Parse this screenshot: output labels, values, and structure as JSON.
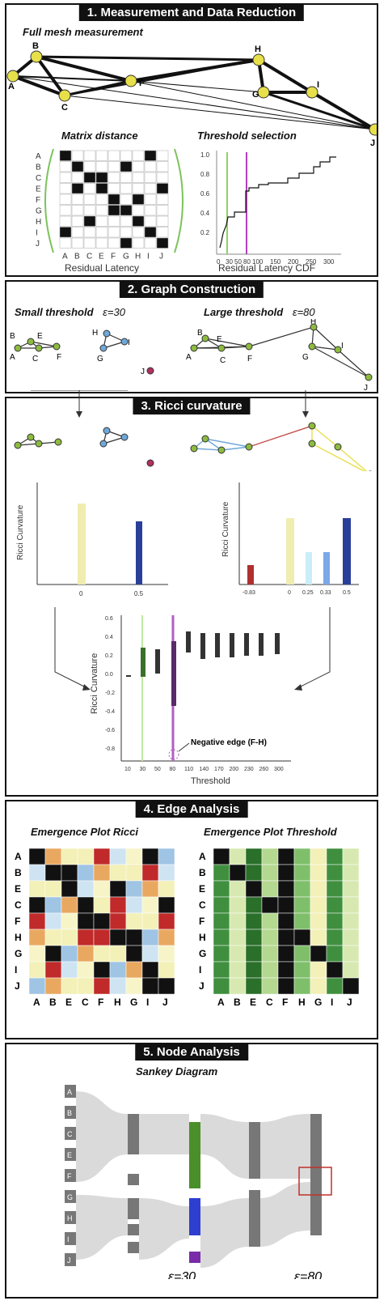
{
  "panel1": {
    "title": "1.  Measurement and Data Reduction",
    "mesh_label": "Full mesh measurement",
    "matrix_label": "Matrix distance",
    "threshold_label": "Threshold selection",
    "matrix_caption": "Residual Latency",
    "cdf_caption": "Residual Latency CDF",
    "nodes": [
      "A",
      "B",
      "C",
      "E",
      "F",
      "G",
      "H",
      "I",
      "J"
    ],
    "row_labels": [
      "A",
      "B",
      "C",
      "E",
      "F",
      "G",
      "H",
      "I",
      "J"
    ],
    "col_labels": [
      "A",
      "B",
      "C",
      "E",
      "F",
      "G",
      "H",
      "I",
      "J"
    ],
    "cdf_y_ticks": [
      "1.0",
      "0.8",
      "0.6",
      "0.4",
      "0.2"
    ],
    "cdf_x_ticks": [
      "0",
      "30",
      "50",
      "80",
      "100",
      "150",
      "200",
      "250",
      "300"
    ]
  },
  "panel2": {
    "title": "2. Graph Construction",
    "small_label": "Small threshold",
    "small_eps": "ε=30",
    "large_label": "Large threshold",
    "large_eps": "ε=80"
  },
  "panel3": {
    "title": "3. Ricci curvature",
    "ylabel": "Ricci Curvature",
    "xlabel": "Threshold",
    "negative_edge": "Negative edge (F-H)",
    "left_ticks": [
      "0",
      "0.5"
    ],
    "right_ticks": [
      "-0.83",
      "0",
      "0.25",
      "0.33",
      "0.5"
    ],
    "box_y_ticks": [
      "0.6",
      "0.4",
      "0.2",
      "0.0",
      "-0.2",
      "-0.4",
      "-0.6",
      "-0.8"
    ],
    "box_x_ticks": [
      "10",
      "30",
      "50",
      "80",
      "110",
      "140",
      "170",
      "200",
      "230",
      "260",
      "300"
    ]
  },
  "panel4": {
    "title": "4. Edge Analysis",
    "left_label": "Emergence Plot Ricci",
    "right_label": "Emergence Plot Threshold",
    "rows": [
      "A",
      "B",
      "E",
      "C",
      "F",
      "H",
      "G",
      "I",
      "J"
    ],
    "left_cols": [
      "A",
      "B",
      "E",
      "C",
      "F",
      "H",
      "G",
      "I",
      "J"
    ],
    "right_cols": [
      "A",
      "B",
      "E",
      "C",
      "F",
      "H",
      "G",
      "I",
      "J"
    ]
  },
  "panel5": {
    "title": "5. Node Analysis",
    "sankey_label": "Sankey Diagram",
    "eps_small": "ε=30",
    "eps_large": "ε=80",
    "col1": [
      "A",
      "B",
      "C",
      "E",
      "F",
      "G",
      "H",
      "I",
      "J"
    ]
  },
  "colors": {
    "node": "#e8e04a",
    "green": "#4a8f2a",
    "blue": "#2e3fd0",
    "purple": "#7a2ca8",
    "red": "#c0302a"
  }
}
